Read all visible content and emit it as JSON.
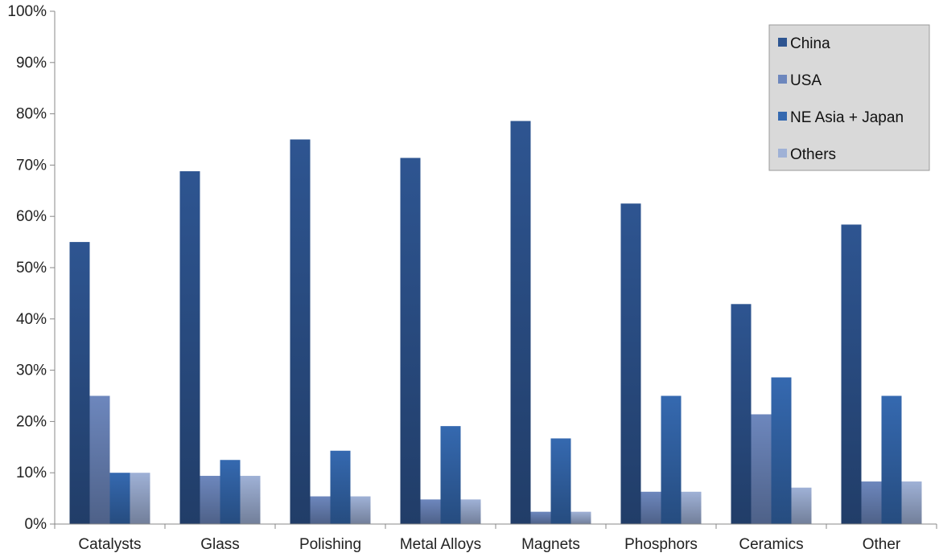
{
  "chart_data": {
    "type": "bar",
    "categories": [
      "Catalysts",
      "Glass",
      "Polishing",
      "Metal Alloys",
      "Magnets",
      "Phosphors",
      "Ceramics",
      "Other"
    ],
    "series": [
      {
        "name": "China",
        "values": [
          55,
          68.8,
          75,
          71.4,
          78.6,
          62.5,
          42.9,
          58.4
        ],
        "color": "#2e5591"
      },
      {
        "name": "USA",
        "values": [
          25,
          9.4,
          5.4,
          4.8,
          2.4,
          6.3,
          21.4,
          8.3
        ],
        "color": "#6d87bd"
      },
      {
        "name": "NE Asia + Japan",
        "values": [
          10,
          12.5,
          14.3,
          19.1,
          16.7,
          25,
          28.6,
          25
        ],
        "color": "#3569b0"
      },
      {
        "name": "Others",
        "values": [
          10,
          9.4,
          5.4,
          4.8,
          2.4,
          6.3,
          7.1,
          8.3
        ],
        "color": "#9fb1d6"
      }
    ],
    "yticks": [
      "0%",
      "10%",
      "20%",
      "30%",
      "40%",
      "50%",
      "60%",
      "70%",
      "80%",
      "90%",
      "100%"
    ],
    "ylim": [
      0,
      100
    ],
    "title": "",
    "xlabel": "",
    "ylabel": "",
    "legend_position": "top-right",
    "grid": false
  }
}
